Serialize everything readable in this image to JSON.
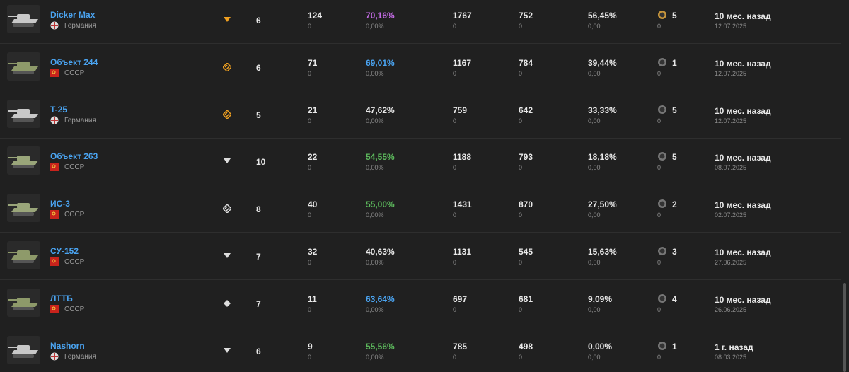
{
  "rows": [
    {
      "name": "Dicker Max",
      "nation": "Германия",
      "tier": 6,
      "battles": 124,
      "battles_delta": 0,
      "winrate": "70,16%",
      "winrate_color": "#c46be6",
      "winrate_delta": "0,00%",
      "damage": 1767,
      "damage_delta": 0,
      "exp": 752,
      "exp_delta": 0,
      "survival": "56,45%",
      "survival_delta": "0,00",
      "mastery": 5,
      "mastery_delta": 0,
      "last": "10 мес. назад",
      "date": "12.07.2025"
    },
    {
      "name": "Объект 244",
      "nation": "СССР",
      "tier": 6,
      "battles": 71,
      "battles_delta": 0,
      "winrate": "69,01%",
      "winrate_color": "#4aa3f0",
      "winrate_delta": "0,00%",
      "damage": 1167,
      "damage_delta": 0,
      "exp": 784,
      "exp_delta": 0,
      "survival": "39,44%",
      "survival_delta": "0,00",
      "mastery": 1,
      "mastery_delta": 0,
      "last": "10 мес. назад",
      "date": "12.07.2025"
    },
    {
      "name": "T-25",
      "nation": "Германия",
      "tier": 5,
      "battles": 21,
      "battles_delta": 0,
      "winrate": "47,62%",
      "winrate_color": "#e8e8e8",
      "winrate_delta": "0,00%",
      "damage": 759,
      "damage_delta": 0,
      "exp": 642,
      "exp_delta": 0,
      "survival": "33,33%",
      "survival_delta": "0,00",
      "mastery": 5,
      "mastery_delta": 0,
      "last": "10 мес. назад",
      "date": "12.07.2025"
    },
    {
      "name": "Объект 263",
      "nation": "СССР",
      "tier": 10,
      "battles": 22,
      "battles_delta": 0,
      "winrate": "54,55%",
      "winrate_color": "#5cb85c",
      "winrate_delta": "0,00%",
      "damage": 1188,
      "damage_delta": 0,
      "exp": 793,
      "exp_delta": 0,
      "survival": "18,18%",
      "survival_delta": "0,00",
      "mastery": 5,
      "mastery_delta": 0,
      "last": "10 мес. назад",
      "date": "08.07.2025"
    },
    {
      "name": "ИС-3",
      "nation": "СССР",
      "tier": 8,
      "battles": 40,
      "battles_delta": 0,
      "winrate": "55,00%",
      "winrate_color": "#5cb85c",
      "winrate_delta": "0,00%",
      "damage": 1431,
      "damage_delta": 0,
      "exp": 870,
      "exp_delta": 0,
      "survival": "27,50%",
      "survival_delta": "0,00",
      "mastery": 2,
      "mastery_delta": 0,
      "last": "10 мес. назад",
      "date": "02.07.2025"
    },
    {
      "name": "СУ-152",
      "nation": "СССР",
      "tier": 7,
      "battles": 32,
      "battles_delta": 0,
      "winrate": "40,63%",
      "winrate_color": "#e8e8e8",
      "winrate_delta": "0,00%",
      "damage": 1131,
      "damage_delta": 0,
      "exp": 545,
      "exp_delta": 0,
      "survival": "15,63%",
      "survival_delta": "0,00",
      "mastery": 3,
      "mastery_delta": 0,
      "last": "10 мес. назад",
      "date": "27.06.2025"
    },
    {
      "name": "ЛТТБ",
      "nation": "СССР",
      "tier": 7,
      "battles": 11,
      "battles_delta": 0,
      "winrate": "63,64%",
      "winrate_color": "#4aa3f0",
      "winrate_delta": "0,00%",
      "damage": 697,
      "damage_delta": 0,
      "exp": 681,
      "exp_delta": 0,
      "survival": "9,09%",
      "survival_delta": "0,00",
      "mastery": 4,
      "mastery_delta": 0,
      "last": "10 мес. назад",
      "date": "26.06.2025"
    },
    {
      "name": "Nashorn",
      "nation": "Германия",
      "tier": 6,
      "battles": 9,
      "battles_delta": 0,
      "winrate": "55,56%",
      "winrate_color": "#5cb85c",
      "winrate_delta": "0,00%",
      "damage": 785,
      "damage_delta": 0,
      "exp": 498,
      "exp_delta": 0,
      "survival": "0,00%",
      "survival_delta": "0,00",
      "mastery": 1,
      "mastery_delta": 0,
      "last": "1 г. назад",
      "date": "08.03.2025"
    }
  ]
}
